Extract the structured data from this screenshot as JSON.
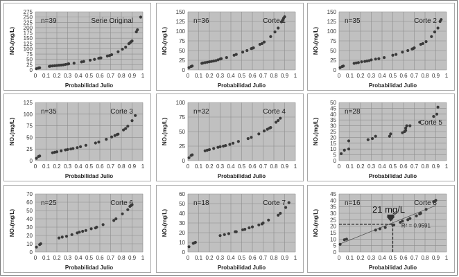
{
  "chart_data": [
    {
      "type": "scatter",
      "title": "Serie Original",
      "n_label": "n=39",
      "xlabel": "Probabilidad Julio",
      "ylabel": "NO₃(mg/L)",
      "xlim": [
        0,
        1
      ],
      "ylim": [
        0,
        275
      ],
      "ystep": 25,
      "grid": true,
      "points": [
        [
          0.01,
          6
        ],
        [
          0.03,
          9
        ],
        [
          0.04,
          10
        ],
        [
          0.13,
          17
        ],
        [
          0.14,
          18
        ],
        [
          0.16,
          19
        ],
        [
          0.18,
          20
        ],
        [
          0.2,
          21
        ],
        [
          0.22,
          22
        ],
        [
          0.24,
          23
        ],
        [
          0.26,
          24
        ],
        [
          0.28,
          26
        ],
        [
          0.3,
          28
        ],
        [
          0.31,
          29
        ],
        [
          0.36,
          32
        ],
        [
          0.43,
          38
        ],
        [
          0.45,
          40
        ],
        [
          0.51,
          46
        ],
        [
          0.55,
          50
        ],
        [
          0.59,
          55
        ],
        [
          0.6,
          56
        ],
        [
          0.61,
          57
        ],
        [
          0.67,
          66
        ],
        [
          0.69,
          68
        ],
        [
          0.71,
          72
        ],
        [
          0.77,
          86
        ],
        [
          0.81,
          98
        ],
        [
          0.84,
          108
        ],
        [
          0.87,
          124
        ],
        [
          0.88,
          128
        ],
        [
          0.89,
          133
        ],
        [
          0.9,
          137
        ],
        [
          0.94,
          180
        ],
        [
          0.95,
          190
        ],
        [
          0.98,
          250
        ]
      ]
    },
    {
      "type": "scatter",
      "title": "Corte 1",
      "n_label": "n=36",
      "xlabel": "Probabilidad Julio",
      "ylabel": "NO₃(mg/L)",
      "xlim": [
        0,
        1
      ],
      "ylim": [
        0,
        150
      ],
      "ystep": 25,
      "grid": true,
      "points": [
        [
          0.01,
          6
        ],
        [
          0.03,
          9
        ],
        [
          0.04,
          10
        ],
        [
          0.13,
          17
        ],
        [
          0.14,
          18
        ],
        [
          0.16,
          19
        ],
        [
          0.18,
          20
        ],
        [
          0.2,
          21
        ],
        [
          0.22,
          22
        ],
        [
          0.24,
          23
        ],
        [
          0.26,
          24
        ],
        [
          0.28,
          26
        ],
        [
          0.3,
          28
        ],
        [
          0.31,
          29
        ],
        [
          0.36,
          32
        ],
        [
          0.43,
          38
        ],
        [
          0.45,
          40
        ],
        [
          0.51,
          46
        ],
        [
          0.55,
          50
        ],
        [
          0.59,
          55
        ],
        [
          0.6,
          56
        ],
        [
          0.61,
          57
        ],
        [
          0.67,
          66
        ],
        [
          0.69,
          68
        ],
        [
          0.71,
          72
        ],
        [
          0.77,
          86
        ],
        [
          0.81,
          98
        ],
        [
          0.84,
          108
        ],
        [
          0.87,
          124
        ],
        [
          0.88,
          128
        ],
        [
          0.89,
          133
        ],
        [
          0.9,
          137
        ]
      ]
    },
    {
      "type": "scatter",
      "title": "Corte 2",
      "n_label": "n=35",
      "xlabel": "Probabilidad Julio",
      "ylabel": "NO₃(mg/L)",
      "xlim": [
        0,
        1
      ],
      "ylim": [
        0,
        150
      ],
      "ystep": 25,
      "grid": true,
      "points": [
        [
          0.01,
          6
        ],
        [
          0.03,
          9
        ],
        [
          0.04,
          10
        ],
        [
          0.14,
          17
        ],
        [
          0.16,
          18
        ],
        [
          0.18,
          19
        ],
        [
          0.21,
          21
        ],
        [
          0.24,
          22
        ],
        [
          0.26,
          23
        ],
        [
          0.28,
          24
        ],
        [
          0.3,
          26
        ],
        [
          0.34,
          28
        ],
        [
          0.37,
          29
        ],
        [
          0.42,
          32
        ],
        [
          0.5,
          38
        ],
        [
          0.53,
          40
        ],
        [
          0.59,
          46
        ],
        [
          0.64,
          50
        ],
        [
          0.68,
          54
        ],
        [
          0.69,
          55
        ],
        [
          0.7,
          57
        ],
        [
          0.76,
          66
        ],
        [
          0.78,
          68
        ],
        [
          0.81,
          73
        ],
        [
          0.86,
          86
        ],
        [
          0.89,
          98
        ],
        [
          0.92,
          108
        ],
        [
          0.94,
          125
        ],
        [
          0.95,
          130
        ]
      ]
    },
    {
      "type": "scatter",
      "title": "Corte 3",
      "n_label": "n=35",
      "xlabel": "Probabilidad Julio",
      "ylabel": "NO₃(mg/L)",
      "xlim": [
        0,
        1
      ],
      "ylim": [
        0,
        125
      ],
      "ystep": 25,
      "grid": true,
      "points": [
        [
          0.01,
          5
        ],
        [
          0.03,
          9
        ],
        [
          0.04,
          10
        ],
        [
          0.16,
          17
        ],
        [
          0.18,
          18
        ],
        [
          0.2,
          19
        ],
        [
          0.24,
          21
        ],
        [
          0.28,
          23
        ],
        [
          0.3,
          24
        ],
        [
          0.33,
          25
        ],
        [
          0.35,
          26
        ],
        [
          0.39,
          28
        ],
        [
          0.42,
          30
        ],
        [
          0.47,
          33
        ],
        [
          0.56,
          38
        ],
        [
          0.59,
          40
        ],
        [
          0.66,
          46
        ],
        [
          0.71,
          51
        ],
        [
          0.74,
          54
        ],
        [
          0.76,
          56
        ],
        [
          0.77,
          57
        ],
        [
          0.82,
          66
        ],
        [
          0.84,
          69
        ],
        [
          0.86,
          74
        ],
        [
          0.9,
          86
        ],
        [
          0.93,
          97
        ]
      ]
    },
    {
      "type": "scatter",
      "title": "Corte 4",
      "n_label": "n=32",
      "xlabel": "Probabilidad Julio",
      "ylabel": "NO₃(mg/L)",
      "xlim": [
        0,
        1
      ],
      "ylim": [
        0,
        100
      ],
      "ystep": 25,
      "grid": true,
      "points": [
        [
          0.01,
          5
        ],
        [
          0.03,
          9
        ],
        [
          0.04,
          10
        ],
        [
          0.16,
          17
        ],
        [
          0.18,
          18
        ],
        [
          0.2,
          19
        ],
        [
          0.24,
          21
        ],
        [
          0.28,
          23
        ],
        [
          0.3,
          24
        ],
        [
          0.33,
          25
        ],
        [
          0.35,
          26
        ],
        [
          0.39,
          28
        ],
        [
          0.42,
          30
        ],
        [
          0.47,
          33
        ],
        [
          0.56,
          38
        ],
        [
          0.59,
          40
        ],
        [
          0.66,
          46
        ],
        [
          0.71,
          51
        ],
        [
          0.74,
          54
        ],
        [
          0.76,
          56
        ],
        [
          0.77,
          57
        ],
        [
          0.82,
          66
        ],
        [
          0.84,
          69
        ],
        [
          0.86,
          73
        ]
      ]
    },
    {
      "type": "scatter",
      "title": "Corte 5",
      "n_label": "n=28",
      "xlabel": "Probabilidad Julio",
      "ylabel": "NO₃(mg/L)",
      "xlim": [
        0,
        1
      ],
      "ylim": [
        0,
        50
      ],
      "ystep": 5,
      "grid": true,
      "points": [
        [
          0.02,
          6
        ],
        [
          0.05,
          9
        ],
        [
          0.09,
          10
        ],
        [
          0.09,
          17
        ],
        [
          0.27,
          18
        ],
        [
          0.31,
          19
        ],
        [
          0.34,
          21
        ],
        [
          0.47,
          21
        ],
        [
          0.48,
          23
        ],
        [
          0.59,
          24
        ],
        [
          0.61,
          25
        ],
        [
          0.62,
          26
        ],
        [
          0.62,
          28
        ],
        [
          0.63,
          30
        ],
        [
          0.66,
          30
        ],
        [
          0.75,
          33
        ],
        [
          0.88,
          38
        ],
        [
          0.91,
          40
        ],
        [
          0.92,
          46
        ]
      ]
    },
    {
      "type": "scatter",
      "title": "Corte 6",
      "n_label": "n=25",
      "xlabel": "Probabilidad Julio",
      "ylabel": "NO₃(mg/L)",
      "xlim": [
        0,
        1
      ],
      "ylim": [
        0,
        70
      ],
      "ystep": 10,
      "grid": true,
      "points": [
        [
          0.01,
          6
        ],
        [
          0.04,
          9
        ],
        [
          0.05,
          10
        ],
        [
          0.22,
          17
        ],
        [
          0.25,
          18
        ],
        [
          0.29,
          19
        ],
        [
          0.34,
          21
        ],
        [
          0.39,
          23
        ],
        [
          0.41,
          24
        ],
        [
          0.44,
          25
        ],
        [
          0.47,
          26
        ],
        [
          0.52,
          28
        ],
        [
          0.56,
          29
        ],
        [
          0.57,
          30
        ],
        [
          0.63,
          33
        ],
        [
          0.73,
          38
        ],
        [
          0.75,
          40
        ],
        [
          0.81,
          46
        ],
        [
          0.86,
          51
        ],
        [
          0.88,
          55
        ],
        [
          0.89,
          56
        ],
        [
          0.9,
          57
        ]
      ]
    },
    {
      "type": "scatter",
      "title": "Corte 7",
      "n_label": "n=18",
      "xlabel": "Probabilidad Julio",
      "ylabel": "NO₃(mg/L)",
      "xlim": [
        0,
        1
      ],
      "ylim": [
        0,
        60
      ],
      "ystep": 10,
      "grid": true,
      "points": [
        [
          0.01,
          5.5
        ],
        [
          0.05,
          9
        ],
        [
          0.06,
          9.5
        ],
        [
          0.07,
          10
        ],
        [
          0.3,
          17
        ],
        [
          0.34,
          18
        ],
        [
          0.38,
          19
        ],
        [
          0.44,
          21
        ],
        [
          0.45,
          21
        ],
        [
          0.51,
          23
        ],
        [
          0.53,
          23.5
        ],
        [
          0.57,
          25
        ],
        [
          0.6,
          26
        ],
        [
          0.66,
          28
        ],
        [
          0.69,
          29
        ],
        [
          0.7,
          30
        ],
        [
          0.75,
          33
        ],
        [
          0.84,
          38
        ],
        [
          0.86,
          40
        ],
        [
          0.91,
          46
        ],
        [
          0.94,
          51
        ]
      ]
    },
    {
      "type": "scatter",
      "title": "Corte 8",
      "n_label": "n=16",
      "xlabel": "Probabilidad Julio",
      "ylabel": "NO₃(mg/L)",
      "xlim": [
        0,
        1
      ],
      "ylim": [
        0,
        45
      ],
      "ystep": 5,
      "grid": true,
      "points": [
        [
          0.01,
          6
        ],
        [
          0.05,
          9.5
        ],
        [
          0.07,
          10
        ],
        [
          0.34,
          17
        ],
        [
          0.38,
          18
        ],
        [
          0.43,
          19
        ],
        [
          0.5,
          21
        ],
        [
          0.51,
          21
        ],
        [
          0.57,
          23
        ],
        [
          0.59,
          24
        ],
        [
          0.64,
          25
        ],
        [
          0.66,
          26
        ],
        [
          0.72,
          28
        ],
        [
          0.75,
          29.5
        ],
        [
          0.76,
          30
        ],
        [
          0.81,
          33
        ],
        [
          0.88,
          39
        ],
        [
          0.9,
          40
        ]
      ],
      "trendline": {
        "from": [
          0,
          6
        ],
        "to": [
          0.9,
          36
        ],
        "r2_label": "R² = 0.9591"
      },
      "annotation": {
        "label": "21 mg/L",
        "x": 0.5,
        "y": 21.5
      }
    }
  ],
  "colors": {
    "plot_bg": "#c0c0c0",
    "grid": "#8c8c8c",
    "marker": "#3a3a3a"
  }
}
